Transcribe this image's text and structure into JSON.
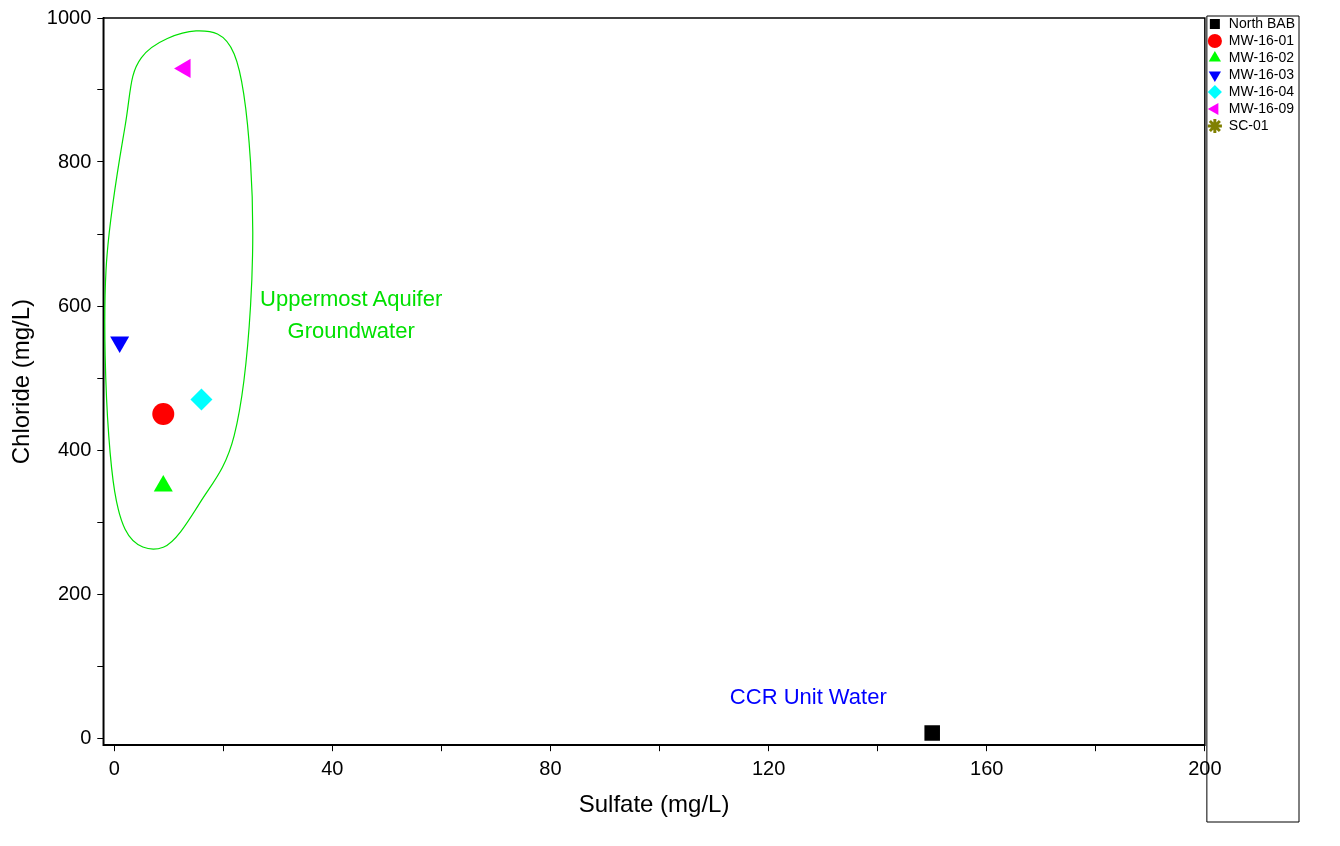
{
  "chart_data": {
    "type": "scatter",
    "xlabel": "Sulfate (mg/L)",
    "ylabel": "Chloride (mg/L)",
    "xlim": [
      -2,
      200
    ],
    "xticks": [
      0,
      {
        "value": 20,
        "label": null
      },
      40,
      {
        "value": 60,
        "label": null
      },
      80,
      {
        "value": 100,
        "label": null
      },
      120,
      {
        "value": 140,
        "label": null
      },
      160,
      {
        "value": 180,
        "label": null
      },
      200
    ],
    "ylim": [
      -10,
      1000
    ],
    "yticks": [
      0,
      {
        "value": 100,
        "label": null
      },
      200,
      {
        "value": 300,
        "label": null
      },
      400,
      {
        "value": 500,
        "label": null
      },
      600,
      {
        "value": 700,
        "label": null
      },
      800,
      {
        "value": 900,
        "label": null
      },
      1000
    ],
    "grid": false,
    "legend": "top right",
    "series": [
      {
        "name": "North BAB",
        "color": "#000000",
        "marker": "square",
        "x": [
          150
        ],
        "values": [
          7
        ]
      },
      {
        "name": "MW-16-01",
        "color": "#ff0000",
        "marker": "circle",
        "x": [
          9
        ],
        "values": [
          450
        ]
      },
      {
        "name": "MW-16-02",
        "color": "#00ff00",
        "marker": "triangle",
        "x": [
          9
        ],
        "values": [
          350
        ]
      },
      {
        "name": "MW-16-03",
        "color": "#0000ff",
        "marker": "triangle-down",
        "x": [
          1
        ],
        "values": [
          550
        ]
      },
      {
        "name": "MW-16-04",
        "color": "#00ffff",
        "marker": "diamond",
        "x": [
          16
        ],
        "values": [
          470
        ]
      },
      {
        "name": "MW-16-09",
        "color": "#ff00ff",
        "marker": "triangle-left",
        "x": [
          13
        ],
        "values": [
          930
        ]
      },
      {
        "name": "SC-01",
        "color": "#808000",
        "marker": "star"
      }
    ],
    "annotations": [
      "Uppermost Aquifer\nGroundwater",
      "CCR Unit Water"
    ]
  }
}
